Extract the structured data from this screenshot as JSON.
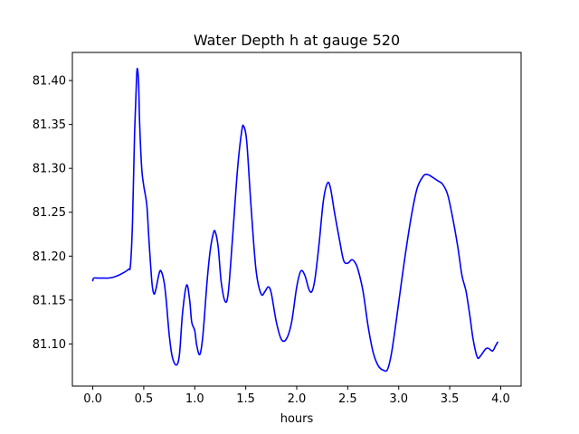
{
  "chart_data": {
    "type": "line",
    "title": "Water Depth h at gauge 520",
    "xlabel": "hours",
    "ylabel": "",
    "xlim": [
      -0.2,
      4.2
    ],
    "ylim": [
      81.052,
      81.432
    ],
    "xticks": [
      0.0,
      0.5,
      1.0,
      1.5,
      2.0,
      2.5,
      3.0,
      3.5,
      4.0
    ],
    "xtick_labels": [
      "0.0",
      "0.5",
      "1.0",
      "1.5",
      "2.0",
      "2.5",
      "3.0",
      "3.5",
      "4.0"
    ],
    "yticks": [
      81.1,
      81.15,
      81.2,
      81.25,
      81.3,
      81.35,
      81.4
    ],
    "ytick_labels": [
      "81.10",
      "81.15",
      "81.20",
      "81.25",
      "81.30",
      "81.35",
      "81.40"
    ],
    "grid": false,
    "legend": null,
    "series": [
      {
        "color": "#0000ff",
        "points": [
          [
            0.0,
            81.172
          ],
          [
            0.01,
            81.175
          ],
          [
            0.05,
            81.175
          ],
          [
            0.1,
            81.175
          ],
          [
            0.15,
            81.175
          ],
          [
            0.2,
            81.176
          ],
          [
            0.25,
            81.178
          ],
          [
            0.3,
            81.181
          ],
          [
            0.35,
            81.185
          ],
          [
            0.37,
            81.19
          ],
          [
            0.39,
            81.24
          ],
          [
            0.41,
            81.34
          ],
          [
            0.43,
            81.405
          ],
          [
            0.44,
            81.412
          ],
          [
            0.45,
            81.395
          ],
          [
            0.46,
            81.35
          ],
          [
            0.48,
            81.3
          ],
          [
            0.5,
            81.28
          ],
          [
            0.53,
            81.258
          ],
          [
            0.55,
            81.22
          ],
          [
            0.58,
            81.17
          ],
          [
            0.6,
            81.157
          ],
          [
            0.62,
            81.163
          ],
          [
            0.65,
            81.18
          ],
          [
            0.67,
            81.183
          ],
          [
            0.7,
            81.17
          ],
          [
            0.72,
            81.15
          ],
          [
            0.75,
            81.11
          ],
          [
            0.78,
            81.085
          ],
          [
            0.82,
            81.076
          ],
          [
            0.85,
            81.088
          ],
          [
            0.88,
            81.135
          ],
          [
            0.92,
            81.167
          ],
          [
            0.95,
            81.15
          ],
          [
            0.97,
            81.125
          ],
          [
            1.0,
            81.115
          ],
          [
            1.02,
            81.098
          ],
          [
            1.05,
            81.088
          ],
          [
            1.08,
            81.11
          ],
          [
            1.12,
            81.17
          ],
          [
            1.15,
            81.205
          ],
          [
            1.18,
            81.225
          ],
          [
            1.2,
            81.228
          ],
          [
            1.23,
            81.21
          ],
          [
            1.26,
            81.17
          ],
          [
            1.3,
            81.148
          ],
          [
            1.33,
            81.16
          ],
          [
            1.37,
            81.22
          ],
          [
            1.42,
            81.3
          ],
          [
            1.46,
            81.342
          ],
          [
            1.48,
            81.348
          ],
          [
            1.51,
            81.33
          ],
          [
            1.55,
            81.26
          ],
          [
            1.6,
            81.185
          ],
          [
            1.65,
            81.157
          ],
          [
            1.69,
            81.16
          ],
          [
            1.72,
            81.165
          ],
          [
            1.75,
            81.158
          ],
          [
            1.8,
            81.125
          ],
          [
            1.85,
            81.105
          ],
          [
            1.9,
            81.106
          ],
          [
            1.95,
            81.125
          ],
          [
            2.0,
            81.165
          ],
          [
            2.04,
            81.183
          ],
          [
            2.08,
            81.178
          ],
          [
            2.12,
            81.162
          ],
          [
            2.15,
            81.16
          ],
          [
            2.18,
            81.175
          ],
          [
            2.22,
            81.215
          ],
          [
            2.26,
            81.262
          ],
          [
            2.3,
            81.283
          ],
          [
            2.33,
            81.278
          ],
          [
            2.37,
            81.25
          ],
          [
            2.42,
            81.218
          ],
          [
            2.46,
            81.195
          ],
          [
            2.5,
            81.192
          ],
          [
            2.54,
            81.196
          ],
          [
            2.57,
            81.193
          ],
          [
            2.6,
            81.185
          ],
          [
            2.65,
            81.16
          ],
          [
            2.7,
            81.12
          ],
          [
            2.75,
            81.09
          ],
          [
            2.8,
            81.075
          ],
          [
            2.85,
            81.07
          ],
          [
            2.89,
            81.071
          ],
          [
            2.93,
            81.09
          ],
          [
            2.98,
            81.13
          ],
          [
            3.05,
            81.19
          ],
          [
            3.12,
            81.243
          ],
          [
            3.18,
            81.277
          ],
          [
            3.24,
            81.291
          ],
          [
            3.28,
            81.293
          ],
          [
            3.33,
            81.29
          ],
          [
            3.38,
            81.286
          ],
          [
            3.43,
            81.282
          ],
          [
            3.48,
            81.27
          ],
          [
            3.53,
            81.243
          ],
          [
            3.58,
            81.21
          ],
          [
            3.62,
            81.178
          ],
          [
            3.66,
            81.16
          ],
          [
            3.7,
            81.13
          ],
          [
            3.73,
            81.105
          ],
          [
            3.77,
            81.085
          ],
          [
            3.8,
            81.086
          ],
          [
            3.85,
            81.094
          ],
          [
            3.88,
            81.095
          ],
          [
            3.92,
            81.092
          ],
          [
            3.95,
            81.098
          ],
          [
            3.97,
            81.102
          ]
        ]
      }
    ]
  }
}
